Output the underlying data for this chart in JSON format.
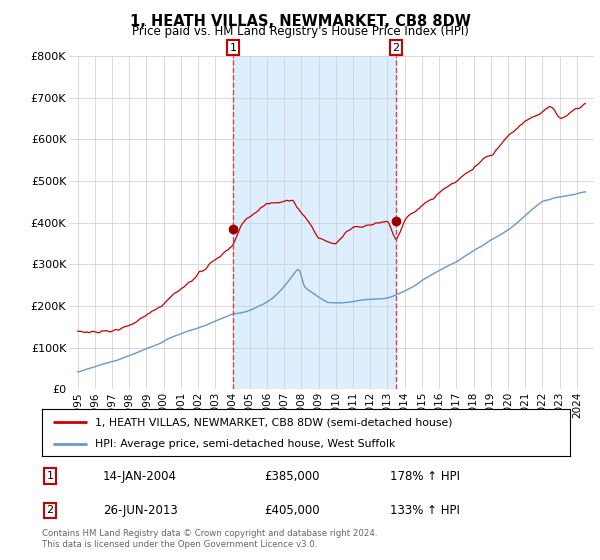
{
  "title": "1, HEATH VILLAS, NEWMARKET, CB8 8DW",
  "subtitle": "Price paid vs. HM Land Registry's House Price Index (HPI)",
  "legend_line1": "1, HEATH VILLAS, NEWMARKET, CB8 8DW (semi-detached house)",
  "legend_line2": "HPI: Average price, semi-detached house, West Suffolk",
  "footnote": "Contains HM Land Registry data © Crown copyright and database right 2024.\nThis data is licensed under the Open Government Licence v3.0.",
  "sale1_label": "1",
  "sale1_date": "14-JAN-2004",
  "sale1_price": "£385,000",
  "sale1_hpi": "178% ↑ HPI",
  "sale2_label": "2",
  "sale2_date": "26-JUN-2013",
  "sale2_price": "£405,000",
  "sale2_hpi": "133% ↑ HPI",
  "sale1_x": 2004.04,
  "sale1_y": 385000,
  "sale2_x": 2013.49,
  "sale2_y": 405000,
  "red_color": "#cc0000",
  "blue_color": "#6699cc",
  "shade_color": "#ddeeff",
  "marker_color": "#990000",
  "vline_color": "#dd4444",
  "ylim": [
    0,
    800000
  ],
  "xlim": [
    1994.5,
    2025.0
  ],
  "yticks": [
    0,
    100000,
    200000,
    300000,
    400000,
    500000,
    600000,
    700000,
    800000
  ],
  "ytick_labels": [
    "£0",
    "£100K",
    "£200K",
    "£300K",
    "£400K",
    "£500K",
    "£600K",
    "£700K",
    "£800K"
  ],
  "xticks": [
    1995,
    1996,
    1997,
    1998,
    1999,
    2000,
    2001,
    2002,
    2003,
    2004,
    2005,
    2006,
    2007,
    2008,
    2009,
    2010,
    2011,
    2012,
    2013,
    2014,
    2015,
    2016,
    2017,
    2018,
    2019,
    2020,
    2021,
    2022,
    2023,
    2024
  ],
  "background_color": "#ffffff",
  "grid_color": "#cccccc"
}
